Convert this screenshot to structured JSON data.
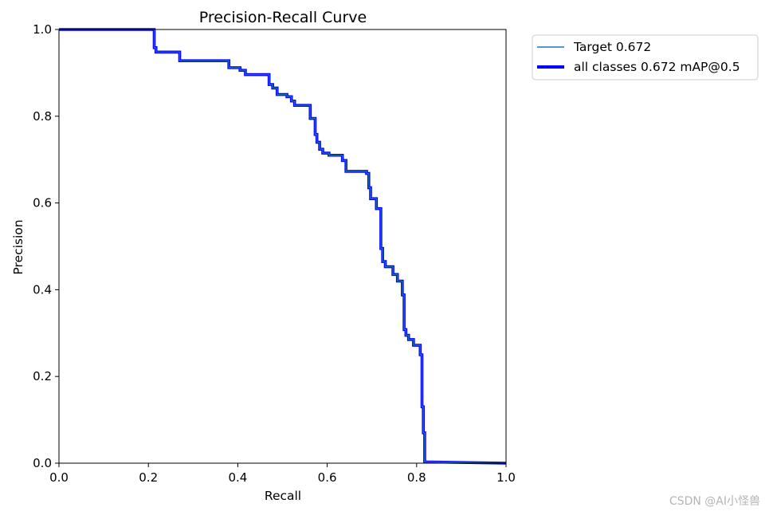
{
  "chart_data": {
    "type": "line",
    "title": "Precision-Recall Curve",
    "xlabel": "Recall",
    "ylabel": "Precision",
    "xlim": [
      0,
      1
    ],
    "ylim": [
      0,
      1
    ],
    "xticks": [
      "0.0",
      "0.2",
      "0.4",
      "0.6",
      "0.8",
      "1.0"
    ],
    "yticks": [
      "0.0",
      "0.2",
      "0.4",
      "0.6",
      "0.8",
      "1.0"
    ],
    "xtick_values": [
      0,
      0.2,
      0.4,
      0.6,
      0.8,
      1.0
    ],
    "ytick_values": [
      0,
      0.2,
      0.4,
      0.6,
      0.8,
      1.0
    ],
    "legend_position": "outside-top-right",
    "series": [
      {
        "name": "Target 0.672",
        "color": "#1f77b4",
        "weight": "thin",
        "x": [
          0,
          0.213,
          0.213,
          0.217,
          0.217,
          0.27,
          0.27,
          0.38,
          0.38,
          0.405,
          0.405,
          0.417,
          0.417,
          0.47,
          0.47,
          0.478,
          0.478,
          0.488,
          0.488,
          0.51,
          0.51,
          0.52,
          0.52,
          0.527,
          0.527,
          0.562,
          0.562,
          0.573,
          0.573,
          0.577,
          0.577,
          0.583,
          0.583,
          0.59,
          0.59,
          0.604,
          0.604,
          0.634,
          0.634,
          0.642,
          0.642,
          0.688,
          0.688,
          0.693,
          0.693,
          0.697,
          0.697,
          0.71,
          0.71,
          0.72,
          0.72,
          0.724,
          0.724,
          0.73,
          0.73,
          0.747,
          0.747,
          0.757,
          0.757,
          0.768,
          0.768,
          0.772,
          0.772,
          0.776,
          0.776,
          0.782,
          0.782,
          0.793,
          0.793,
          0.808,
          0.808,
          0.812,
          0.812,
          0.815,
          0.815,
          0.818,
          0.818,
          1.0
        ],
        "y": [
          1.0,
          1.0,
          0.958,
          0.958,
          0.948,
          0.948,
          0.928,
          0.928,
          0.912,
          0.912,
          0.906,
          0.906,
          0.896,
          0.896,
          0.873,
          0.873,
          0.865,
          0.865,
          0.85,
          0.85,
          0.845,
          0.845,
          0.835,
          0.835,
          0.825,
          0.825,
          0.795,
          0.795,
          0.758,
          0.758,
          0.74,
          0.74,
          0.724,
          0.724,
          0.715,
          0.715,
          0.71,
          0.71,
          0.698,
          0.698,
          0.673,
          0.673,
          0.668,
          0.668,
          0.635,
          0.635,
          0.61,
          0.61,
          0.587,
          0.587,
          0.495,
          0.495,
          0.465,
          0.465,
          0.453,
          0.453,
          0.435,
          0.435,
          0.42,
          0.42,
          0.388,
          0.388,
          0.308,
          0.308,
          0.295,
          0.295,
          0.285,
          0.285,
          0.272,
          0.272,
          0.25,
          0.25,
          0.13,
          0.13,
          0.07,
          0.07,
          0.003,
          0.0
        ]
      },
      {
        "name": "all classes 0.672 mAP@0.5",
        "color": "#0000ff",
        "weight": "thick",
        "x": [
          0,
          0.213,
          0.213,
          0.217,
          0.217,
          0.27,
          0.27,
          0.38,
          0.38,
          0.405,
          0.405,
          0.417,
          0.417,
          0.47,
          0.47,
          0.478,
          0.478,
          0.488,
          0.488,
          0.51,
          0.51,
          0.52,
          0.52,
          0.527,
          0.527,
          0.562,
          0.562,
          0.573,
          0.573,
          0.577,
          0.577,
          0.583,
          0.583,
          0.59,
          0.59,
          0.604,
          0.604,
          0.634,
          0.634,
          0.642,
          0.642,
          0.688,
          0.688,
          0.693,
          0.693,
          0.697,
          0.697,
          0.71,
          0.71,
          0.72,
          0.72,
          0.724,
          0.724,
          0.73,
          0.73,
          0.747,
          0.747,
          0.757,
          0.757,
          0.768,
          0.768,
          0.772,
          0.772,
          0.776,
          0.776,
          0.782,
          0.782,
          0.793,
          0.793,
          0.808,
          0.808,
          0.812,
          0.812,
          0.815,
          0.815,
          0.818,
          0.818,
          1.0
        ],
        "y": [
          1.0,
          1.0,
          0.958,
          0.958,
          0.948,
          0.948,
          0.928,
          0.928,
          0.912,
          0.912,
          0.906,
          0.906,
          0.896,
          0.896,
          0.873,
          0.873,
          0.865,
          0.865,
          0.85,
          0.85,
          0.845,
          0.845,
          0.835,
          0.835,
          0.825,
          0.825,
          0.795,
          0.795,
          0.758,
          0.758,
          0.74,
          0.74,
          0.724,
          0.724,
          0.715,
          0.715,
          0.71,
          0.71,
          0.698,
          0.698,
          0.673,
          0.673,
          0.668,
          0.668,
          0.635,
          0.635,
          0.61,
          0.61,
          0.587,
          0.587,
          0.495,
          0.495,
          0.465,
          0.465,
          0.453,
          0.453,
          0.435,
          0.435,
          0.42,
          0.42,
          0.388,
          0.388,
          0.308,
          0.308,
          0.295,
          0.295,
          0.285,
          0.285,
          0.272,
          0.272,
          0.25,
          0.25,
          0.13,
          0.13,
          0.07,
          0.07,
          0.003,
          0.0
        ]
      }
    ]
  },
  "watermark": "CSDN @AI小怪兽"
}
